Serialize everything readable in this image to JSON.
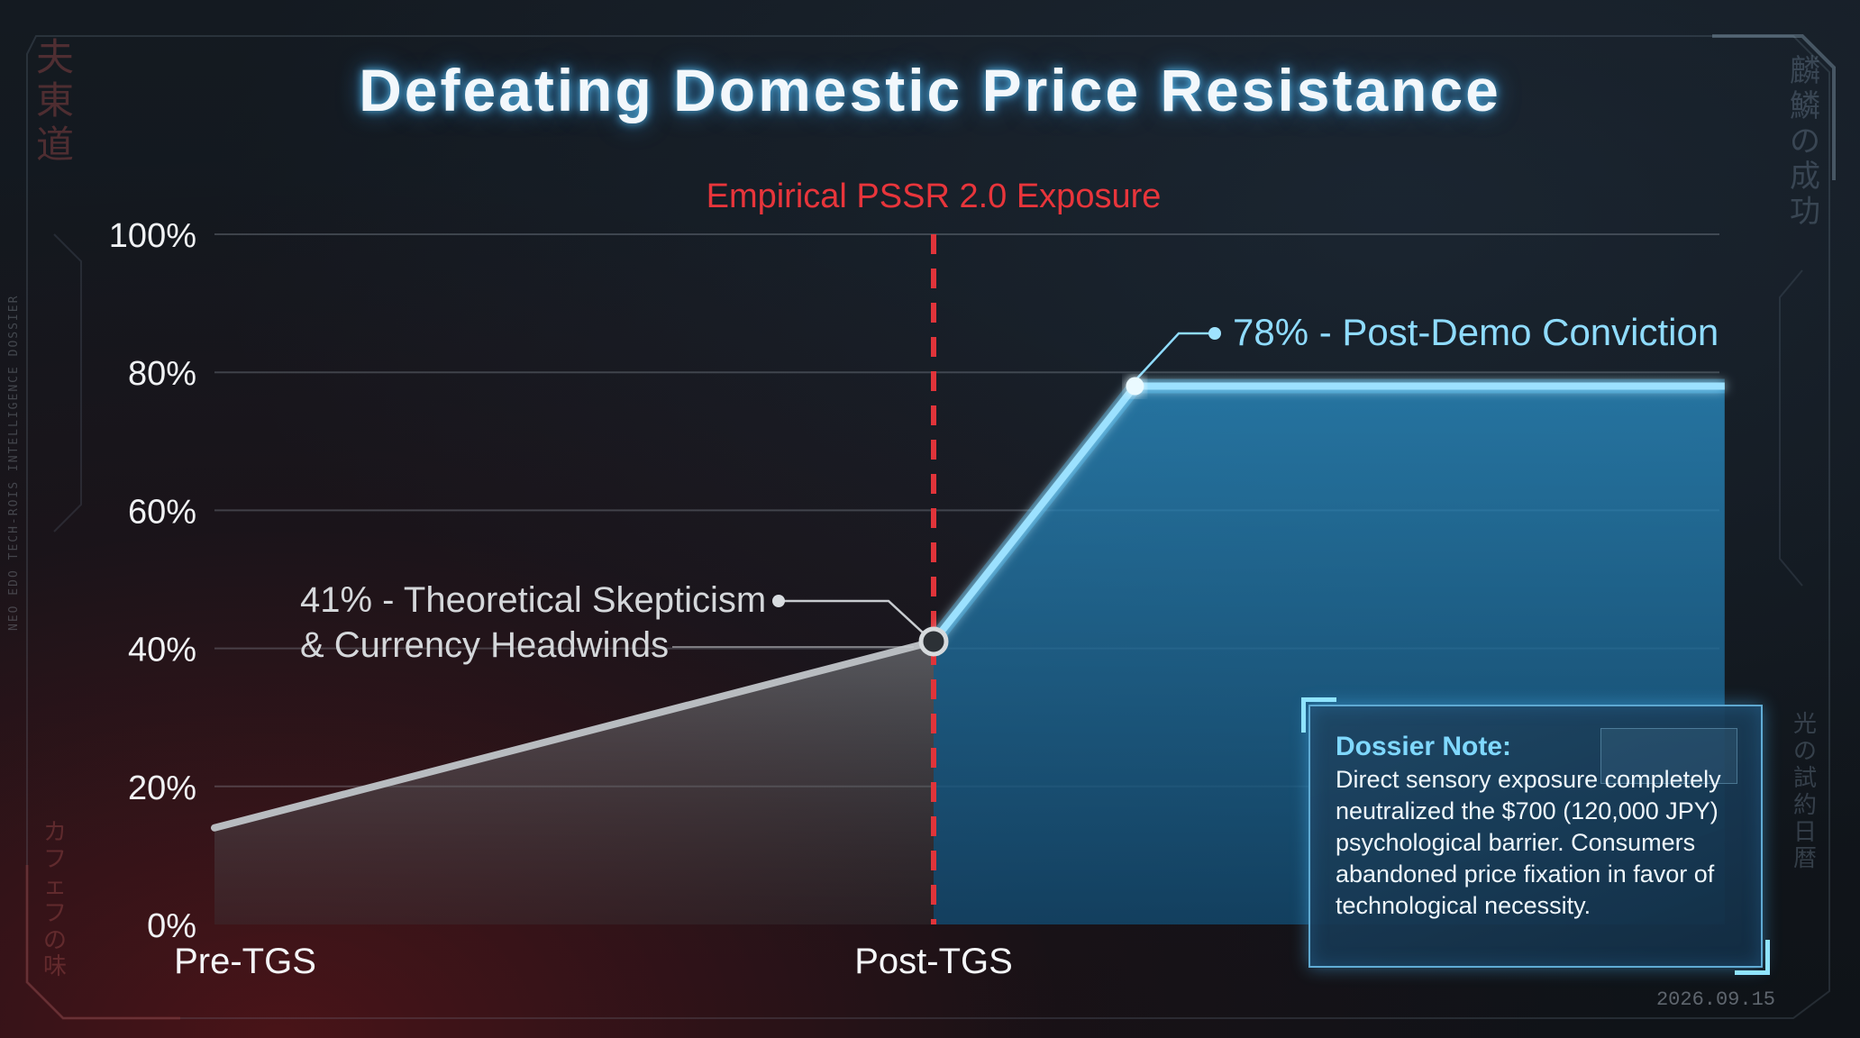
{
  "title": "Defeating Domestic Price Resistance",
  "side_text_left": "夫\n東\n道",
  "side_text_left_bottom": "カ\nフ\nェ\nフ\nの\n味",
  "side_text_right": "麟\n鱗\nの\n成\n功",
  "side_text_right_bottom": "光\nの\n試\n約\n日\n暦",
  "vertical_caption": "NEO EDO TECH-ROIS INTELLIGENCE DOSSIER",
  "date_stamp": "2026.09.15",
  "note": {
    "title": "Dossier Note:",
    "body": "Direct sensory exposure completely neutralized the $700 (120,000 JPY) psychological barrier. Consumers abandoned price fixation in favor of technological necessity."
  },
  "colors": {
    "accent_blue": "#5cc8ff",
    "skeptic_gray": "#b8bcc0",
    "marker_red": "#e0343a",
    "title_glow": "#5ac8ff"
  },
  "chart_data": {
    "type": "line",
    "title": "Defeating Domestic Price Resistance",
    "x_categories": [
      "Pre-TGS",
      "Post-TGS"
    ],
    "y_ticks": [
      "0%",
      "20%",
      "40%",
      "60%",
      "80%",
      "100%"
    ],
    "ylim": [
      0,
      100
    ],
    "grid": true,
    "legend": "none",
    "series": [
      {
        "values": [
          [
            0,
            14
          ],
          [
            1,
            41
          ]
        ]
      },
      {
        "values": [
          [
            1,
            41
          ],
          [
            1.28,
            78
          ],
          [
            2.1,
            78
          ]
        ]
      }
    ],
    "vertical_marker": {
      "x": 1,
      "label": "Empirical PSSR 2.0 Exposure"
    },
    "annotations": [
      {
        "label_line1": "41% - Theoretical Skepticism",
        "label_line2": "& Currency Headwinds",
        "x": 1,
        "y": 41
      },
      {
        "label_line1": "78% - Post-Demo Conviction",
        "x": 1.28,
        "y": 78
      }
    ]
  }
}
